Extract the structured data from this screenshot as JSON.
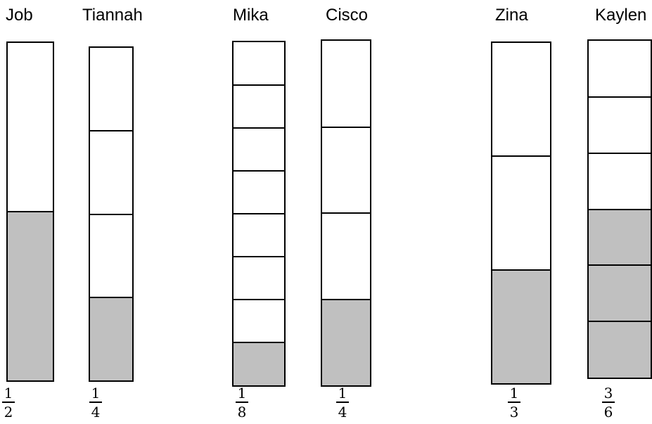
{
  "colors": {
    "shaded": "#c0c0c0",
    "unshaded": "#ffffff",
    "outline": "#000000"
  },
  "strips": [
    {
      "name": "Job",
      "parts": 2,
      "shaded_parts": 1,
      "fraction": {
        "numerator": "1",
        "denominator": "2"
      }
    },
    {
      "name": "Tiannah",
      "parts": 4,
      "shaded_parts": 1,
      "fraction": {
        "numerator": "1",
        "denominator": "4"
      }
    },
    {
      "name": "Mika",
      "parts": 8,
      "shaded_parts": 1,
      "fraction": {
        "numerator": "1",
        "denominator": "8"
      }
    },
    {
      "name": "Cisco",
      "parts": 4,
      "shaded_parts": 1,
      "fraction": {
        "numerator": "1",
        "denominator": "4"
      }
    },
    {
      "name": "Zina",
      "parts": 3,
      "shaded_parts": 1,
      "fraction": {
        "numerator": "1",
        "denominator": "3"
      }
    },
    {
      "name": "Kaylen",
      "parts": 6,
      "shaded_parts": 3,
      "fraction": {
        "numerator": "3",
        "denominator": "6"
      }
    }
  ]
}
